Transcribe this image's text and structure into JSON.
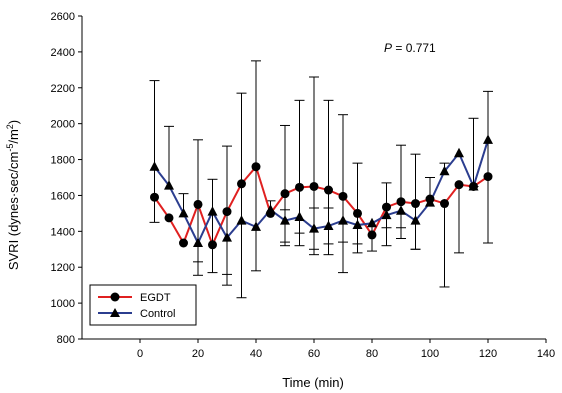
{
  "chart_data": {
    "type": "line",
    "xlabel": "Time (min)",
    "ylabel_parts": [
      "SVRI (dynes·sec/cm",
      "-5",
      "/m",
      "2",
      ")"
    ],
    "xlim": [
      -20,
      140
    ],
    "ylim": [
      800,
      2600
    ],
    "xticks": [
      0,
      20,
      40,
      60,
      80,
      100,
      120,
      140
    ],
    "yticks": [
      800,
      1000,
      1200,
      1400,
      1600,
      1800,
      2000,
      2200,
      2400,
      2600
    ],
    "annotation": {
      "italic": "P",
      "rest": " = 0.771"
    },
    "legend_position": "bottom-left",
    "grid": false,
    "x": [
      5,
      10,
      15,
      20,
      25,
      30,
      35,
      40,
      45,
      50,
      55,
      60,
      65,
      70,
      75,
      80,
      85,
      90,
      95,
      100,
      105,
      110,
      115,
      120
    ],
    "series": [
      {
        "name": "EGDT",
        "color": "#e02020",
        "marker": "circle",
        "values": [
          1590,
          1475,
          1335,
          1550,
          1325,
          1510,
          1665,
          1760,
          1500,
          1610,
          1645,
          1650,
          1630,
          1595,
          1500,
          1380,
          1535,
          1565,
          1555,
          1580,
          1555,
          1660,
          1650,
          1705
        ],
        "err_upper": [
          null,
          null,
          null,
          1910,
          null,
          1875,
          2170,
          2350,
          null,
          1990,
          2130,
          2260,
          2130,
          2050,
          1780,
          null,
          1670,
          1880,
          1830,
          null,
          null,
          null,
          2030,
          2180
        ],
        "err_lower": [
          null,
          null,
          null,
          1155,
          null,
          1160,
          1030,
          1180,
          null,
          1340,
          1320,
          1270,
          1270,
          1170,
          1280,
          null,
          1420,
          1360,
          1300,
          null,
          1090,
          1280,
          1650,
          1335
        ]
      },
      {
        "name": "Control",
        "color": "#2b3d8f",
        "marker": "triangle",
        "values": [
          1760,
          1655,
          1500,
          1335,
          1510,
          1365,
          1460,
          1425,
          1520,
          1460,
          1480,
          1415,
          1430,
          1460,
          1435,
          1445,
          1490,
          1515,
          1460,
          1560,
          1735,
          1835,
          1650,
          1910
        ],
        "err_upper": [
          2240,
          1985,
          1610,
          null,
          1690,
          null,
          null,
          null,
          1570,
          1520,
          null,
          1530,
          1530,
          null,
          null,
          null,
          null,
          null,
          null,
          1700,
          1780,
          null,
          null,
          null
        ],
        "err_lower": [
          1450,
          null,
          null,
          1230,
          1170,
          1100,
          null,
          null,
          null,
          1320,
          1390,
          1300,
          1330,
          1340,
          1330,
          1290,
          1320,
          1420,
          1300,
          null,
          null,
          null,
          null,
          null
        ]
      }
    ]
  }
}
